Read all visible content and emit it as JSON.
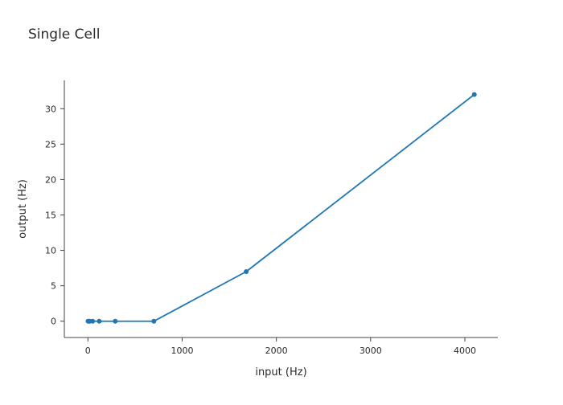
{
  "chart_data": {
    "type": "line",
    "title": "Single Cell",
    "xlabel": "input (Hz)",
    "ylabel": "output (Hz)",
    "xlim": [
      -250,
      4350
    ],
    "ylim": [
      -2.3,
      34
    ],
    "xticks": [
      0,
      1000,
      2000,
      3000,
      4000
    ],
    "yticks": [
      0,
      5,
      10,
      15,
      20,
      25,
      30
    ],
    "grid": false,
    "series": [
      {
        "color": "#1f77b4",
        "x": [
          2,
          8,
          20,
          50,
          120,
          290,
          700,
          1680,
          4100
        ],
        "y": [
          0,
          0,
          0,
          0,
          0,
          0,
          0,
          7,
          32
        ]
      }
    ]
  }
}
